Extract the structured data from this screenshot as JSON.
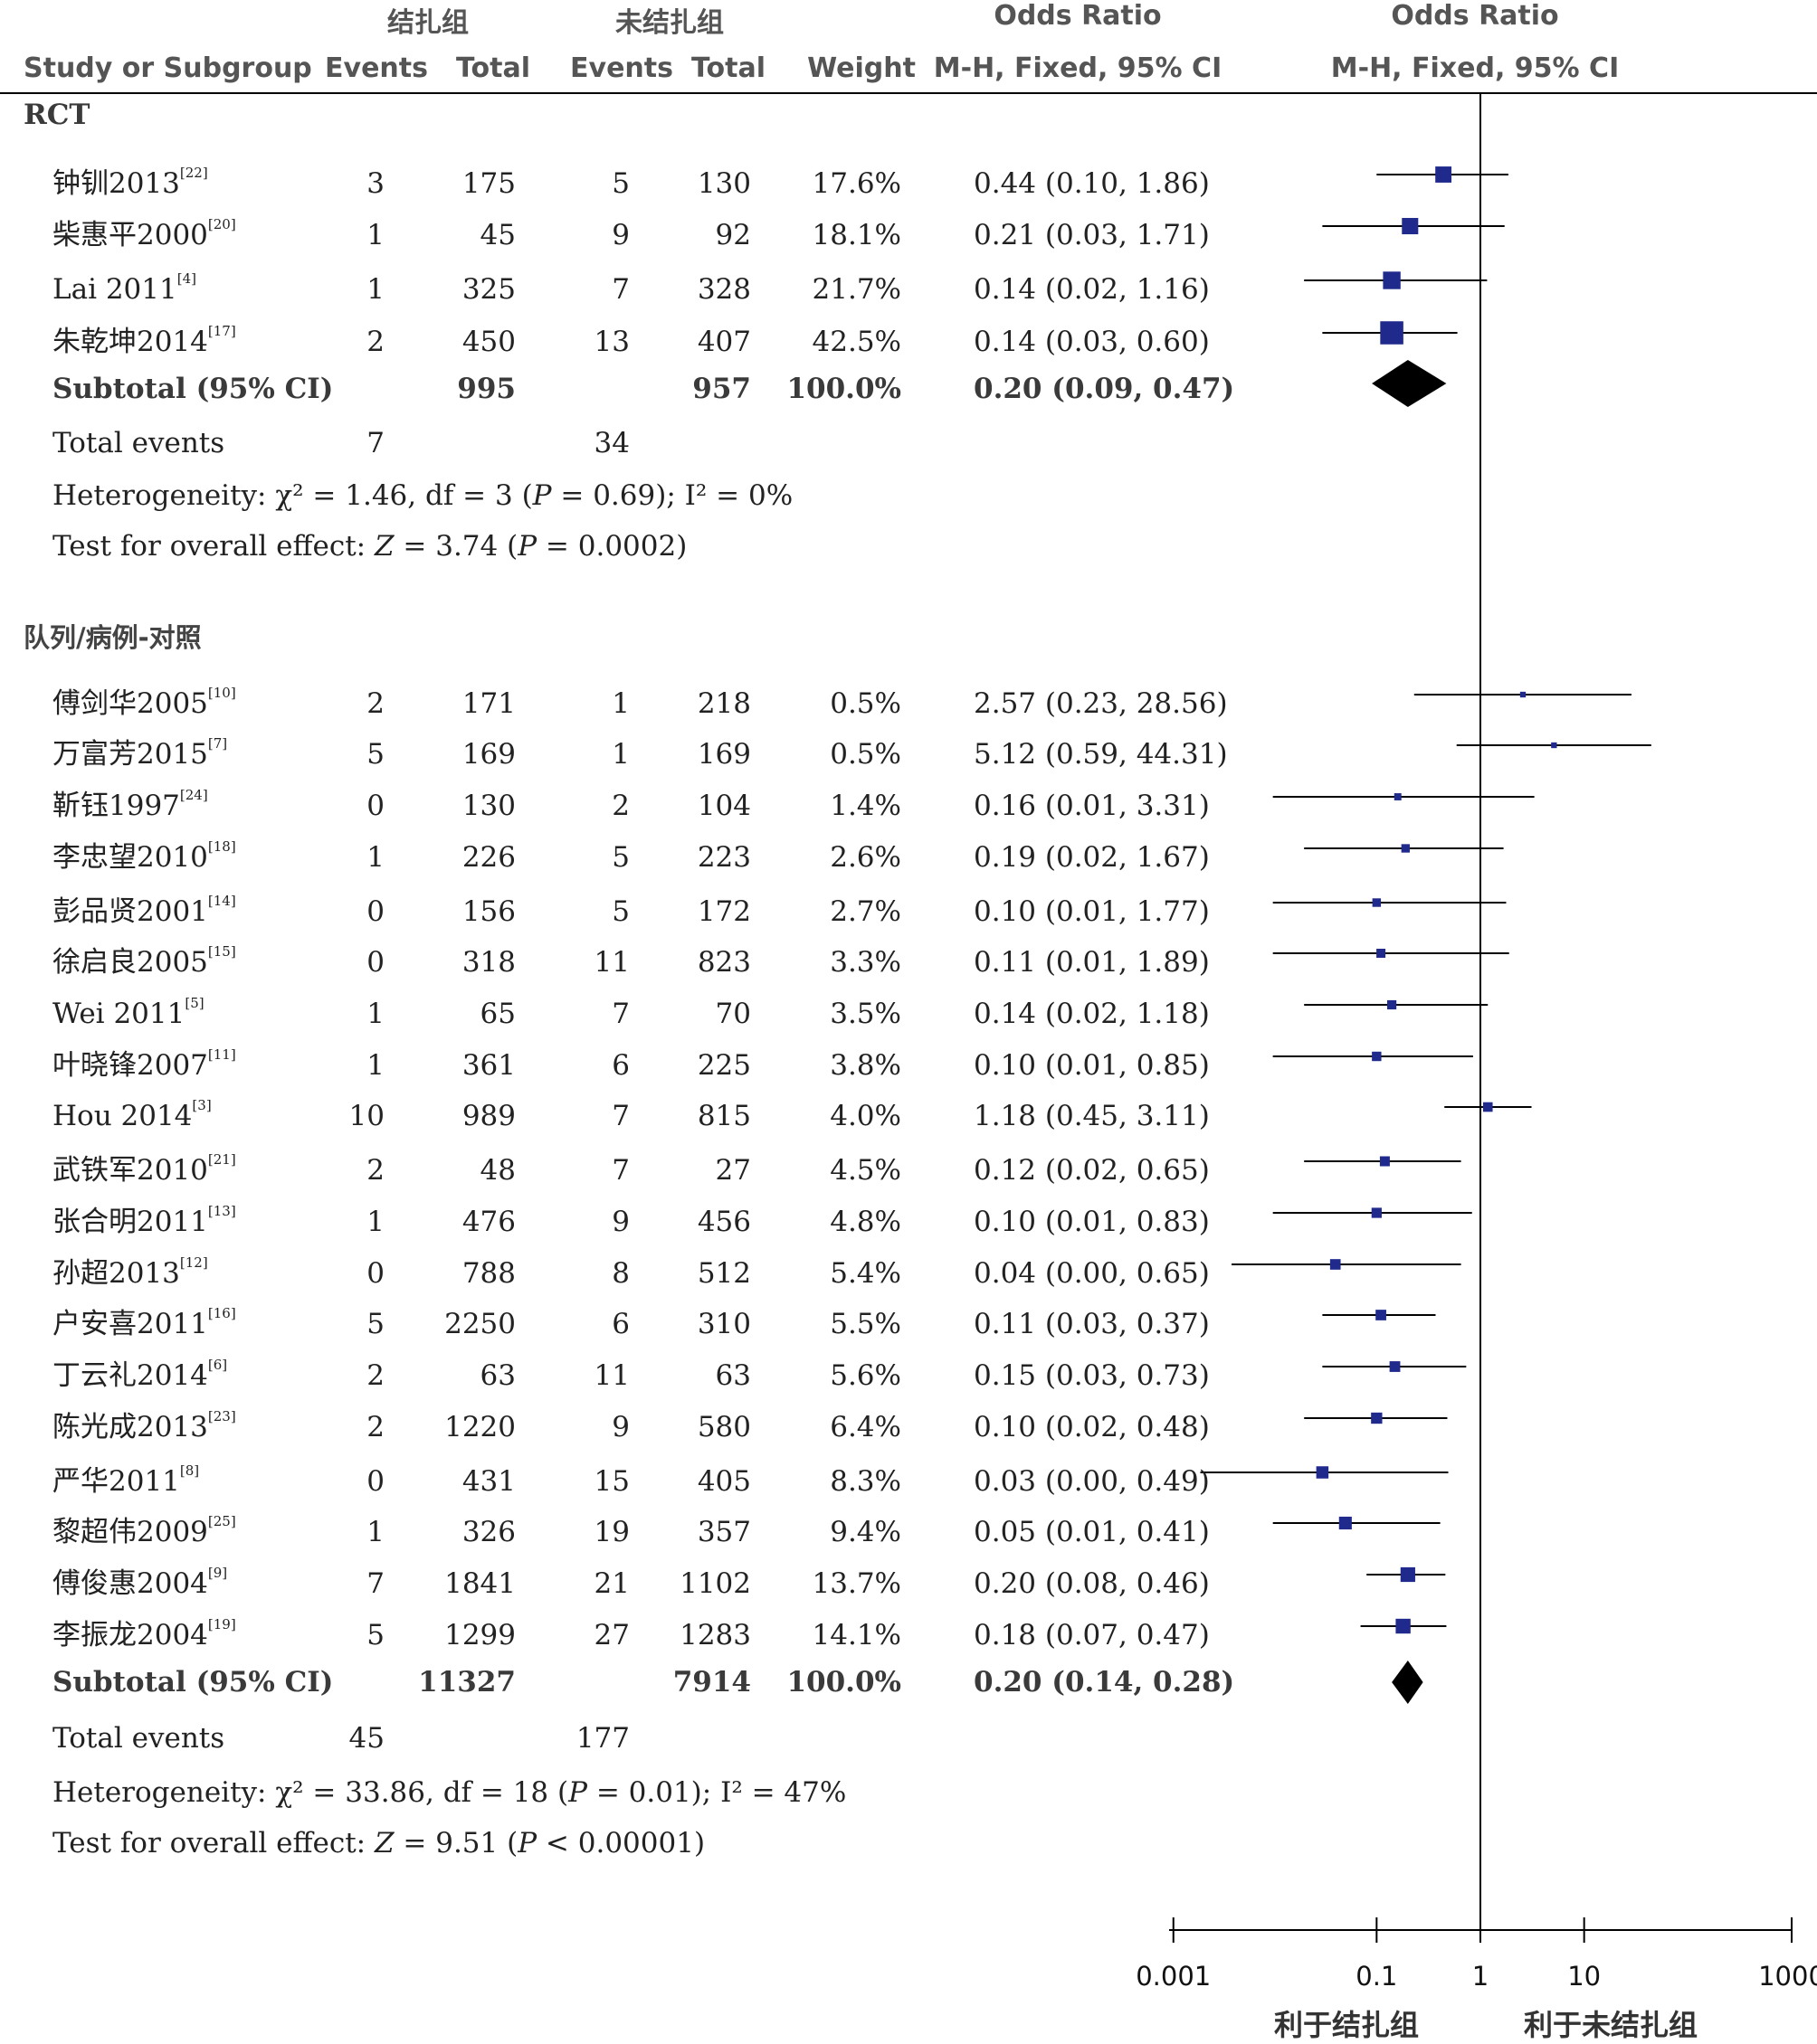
{
  "header": {
    "group_ligated": "结扎组",
    "group_nonligated": "未结扎组",
    "odds_ratio_left": "Odds Ratio",
    "odds_ratio_right": "Odds Ratio",
    "col_study": "Study or Subgroup",
    "col_events_1": "Events",
    "col_total_1": "Total",
    "col_events_2": "Events",
    "col_total_2": "Total",
    "col_weight": "Weight",
    "col_method_left": "M-H, Fixed, 95% CI",
    "col_method_right": "M-H, Fixed, 95% CI"
  },
  "subgroups": [
    {
      "title": "RCT",
      "studies": [
        {
          "name": "钟钏2013",
          "ref": "[22]",
          "e1": "3",
          "t1": "175",
          "e2": "5",
          "t2": "130",
          "weight": "17.6%",
          "ci": "0.44 (0.10, 1.86)",
          "or": 0.44,
          "lo": 0.1,
          "hi": 1.86
        },
        {
          "name": "柴惠平2000",
          "ref": "[20]",
          "e1": "1",
          "t1": "45",
          "e2": "9",
          "t2": "92",
          "weight": "18.1%",
          "ci": "0.21 (0.03, 1.71)",
          "or": 0.21,
          "lo": 0.03,
          "hi": 1.71
        },
        {
          "name": "Lai 2011",
          "ref": "[4]",
          "e1": "1",
          "t1": "325",
          "e2": "7",
          "t2": "328",
          "weight": "21.7%",
          "ci": "0.14 (0.02, 1.16)",
          "or": 0.14,
          "lo": 0.02,
          "hi": 1.16
        },
        {
          "name": "朱乾坤2014",
          "ref": "[17]",
          "e1": "2",
          "t1": "450",
          "e2": "13",
          "t2": "407",
          "weight": "42.5%",
          "ci": "0.14 (0.03, 0.60)",
          "or": 0.14,
          "lo": 0.03,
          "hi": 0.6
        }
      ],
      "subtotal": {
        "label": "Subtotal (95% CI)",
        "t1": "995",
        "t2": "957",
        "weight": "100.0%",
        "ci": "0.20 (0.09, 0.47)",
        "or": 0.2,
        "lo": 0.09,
        "hi": 0.47
      },
      "total_events": {
        "label": "Total events",
        "e1": "7",
        "e2": "34"
      },
      "heterogeneity": {
        "prefix": "Heterogeneity: ",
        "chi": "χ² = 1.46, df = 3 (",
        "p": "P",
        "p_rest": " = 0.69); ",
        "i2": "I² = 0%"
      },
      "overall": {
        "prefix": "Test for overall effect: ",
        "z": "Z",
        "z_rest": " = 3.74 (",
        "p": "P",
        "p_rest": " = 0.0002)"
      }
    },
    {
      "title": "队列/病例-对照",
      "studies": [
        {
          "name": "傅剑华2005",
          "ref": "[10]",
          "e1": "2",
          "t1": "171",
          "e2": "1",
          "t2": "218",
          "weight": "0.5%",
          "ci": "2.57 (0.23, 28.56)",
          "or": 2.57,
          "lo": 0.23,
          "hi": 28.56
        },
        {
          "name": "万富芳2015",
          "ref": "[7]",
          "e1": "5",
          "t1": "169",
          "e2": "1",
          "t2": "169",
          "weight": "0.5%",
          "ci": "5.12 (0.59, 44.31)",
          "or": 5.12,
          "lo": 0.59,
          "hi": 44.31
        },
        {
          "name": "靳钰1997",
          "ref": "[24]",
          "e1": "0",
          "t1": "130",
          "e2": "2",
          "t2": "104",
          "weight": "1.4%",
          "ci": "0.16 (0.01, 3.31)",
          "or": 0.16,
          "lo": 0.01,
          "hi": 3.31
        },
        {
          "name": "李忠望2010",
          "ref": "[18]",
          "e1": "1",
          "t1": "226",
          "e2": "5",
          "t2": "223",
          "weight": "2.6%",
          "ci": "0.19 (0.02, 1.67)",
          "or": 0.19,
          "lo": 0.02,
          "hi": 1.67
        },
        {
          "name": "彭品贤2001",
          "ref": "[14]",
          "e1": "0",
          "t1": "156",
          "e2": "5",
          "t2": "172",
          "weight": "2.7%",
          "ci": "0.10 (0.01, 1.77)",
          "or": 0.1,
          "lo": 0.01,
          "hi": 1.77
        },
        {
          "name": "徐启良2005",
          "ref": "[15]",
          "e1": "0",
          "t1": "318",
          "e2": "11",
          "t2": "823",
          "weight": "3.3%",
          "ci": "0.11 (0.01, 1.89)",
          "or": 0.11,
          "lo": 0.01,
          "hi": 1.89
        },
        {
          "name": "Wei 2011",
          "ref": "[5]",
          "e1": "1",
          "t1": "65",
          "e2": "7",
          "t2": "70",
          "weight": "3.5%",
          "ci": "0.14 (0.02, 1.18)",
          "or": 0.14,
          "lo": 0.02,
          "hi": 1.18
        },
        {
          "name": "叶晓锋2007",
          "ref": "[11]",
          "e1": "1",
          "t1": "361",
          "e2": "6",
          "t2": "225",
          "weight": "3.8%",
          "ci": "0.10 (0.01, 0.85)",
          "or": 0.1,
          "lo": 0.01,
          "hi": 0.85
        },
        {
          "name": "Hou 2014",
          "ref": "[3]",
          "e1": "10",
          "t1": "989",
          "e2": "7",
          "t2": "815",
          "weight": "4.0%",
          "ci": "1.18 (0.45, 3.11)",
          "or": 1.18,
          "lo": 0.45,
          "hi": 3.11
        },
        {
          "name": "武铁军2010",
          "ref": "[21]",
          "e1": "2",
          "t1": "48",
          "e2": "7",
          "t2": "27",
          "weight": "4.5%",
          "ci": "0.12 (0.02, 0.65)",
          "or": 0.12,
          "lo": 0.02,
          "hi": 0.65
        },
        {
          "name": "张合明2011",
          "ref": "[13]",
          "e1": "1",
          "t1": "476",
          "e2": "9",
          "t2": "456",
          "weight": "4.8%",
          "ci": "0.10 (0.01, 0.83)",
          "or": 0.1,
          "lo": 0.01,
          "hi": 0.83
        },
        {
          "name": "孙超2013",
          "ref": "[12]",
          "e1": "0",
          "t1": "788",
          "e2": "8",
          "t2": "512",
          "weight": "5.4%",
          "ci": "0.04 (0.00, 0.65)",
          "or": 0.04,
          "lo": 0.004,
          "hi": 0.65
        },
        {
          "name": "户安喜2011",
          "ref": "[16]",
          "e1": "5",
          "t1": "2250",
          "e2": "6",
          "t2": "310",
          "weight": "5.5%",
          "ci": "0.11 (0.03, 0.37)",
          "or": 0.11,
          "lo": 0.03,
          "hi": 0.37
        },
        {
          "name": "丁云礼2014",
          "ref": "[6]",
          "e1": "2",
          "t1": "63",
          "e2": "11",
          "t2": "63",
          "weight": "5.6%",
          "ci": "0.15 (0.03, 0.73)",
          "or": 0.15,
          "lo": 0.03,
          "hi": 0.73
        },
        {
          "name": "陈光成2013",
          "ref": "[23]",
          "e1": "2",
          "t1": "1220",
          "e2": "9",
          "t2": "580",
          "weight": "6.4%",
          "ci": "0.10 (0.02, 0.48)",
          "or": 0.1,
          "lo": 0.02,
          "hi": 0.48
        },
        {
          "name": "严华2011",
          "ref": "[8]",
          "e1": "0",
          "t1": "431",
          "e2": "15",
          "t2": "405",
          "weight": "8.3%",
          "ci": "0.03 (0.00, 0.49)",
          "or": 0.03,
          "lo": 0.002,
          "hi": 0.49
        },
        {
          "name": "黎超伟2009",
          "ref": "[25]",
          "e1": "1",
          "t1": "326",
          "e2": "19",
          "t2": "357",
          "weight": "9.4%",
          "ci": "0.05 (0.01, 0.41)",
          "or": 0.05,
          "lo": 0.01,
          "hi": 0.41
        },
        {
          "name": "傅俊惠2004",
          "ref": "[9]",
          "e1": "7",
          "t1": "1841",
          "e2": "21",
          "t2": "1102",
          "weight": "13.7%",
          "ci": "0.20 (0.08, 0.46)",
          "or": 0.2,
          "lo": 0.08,
          "hi": 0.46
        },
        {
          "name": "李振龙2004",
          "ref": "[19]",
          "e1": "5",
          "t1": "1299",
          "e2": "27",
          "t2": "1283",
          "weight": "14.1%",
          "ci": "0.18 (0.07, 0.47)",
          "or": 0.18,
          "lo": 0.07,
          "hi": 0.47
        }
      ],
      "subtotal": {
        "label": "Subtotal (95% CI)",
        "t1": "11327",
        "t2": "7914",
        "weight": "100.0%",
        "ci": "0.20 (0.14, 0.28)",
        "or": 0.2,
        "lo": 0.14,
        "hi": 0.28
      },
      "total_events": {
        "label": "Total events",
        "e1": "45",
        "e2": "177"
      },
      "heterogeneity": {
        "prefix": "Heterogeneity: ",
        "chi": "χ² = 33.86, df = 18 (",
        "p": "P",
        "p_rest": " = 0.01); ",
        "i2": "I² = 47%"
      },
      "overall": {
        "prefix": "Test for overall effect: ",
        "z": "Z",
        "z_rest": " = 9.51 (",
        "p": "P",
        "p_rest": " < 0.00001)"
      }
    }
  ],
  "axis": {
    "ticks": [
      {
        "value": 0.001,
        "label": "0.001"
      },
      {
        "value": 0.1,
        "label": "0.1"
      },
      {
        "value": 1,
        "label": "1"
      },
      {
        "value": 10,
        "label": "10"
      },
      {
        "value": 1000,
        "label": "1000"
      }
    ],
    "favours_left": "利于结扎组",
    "favours_right": "利于未结扎组"
  },
  "chart_data": {
    "type": "forest",
    "scale": "log",
    "xlim": [
      0.001,
      1000
    ],
    "reference_line": 1,
    "colors": {
      "square": "#1f2a8c",
      "diamond": "#000000",
      "line": "#000000"
    }
  }
}
